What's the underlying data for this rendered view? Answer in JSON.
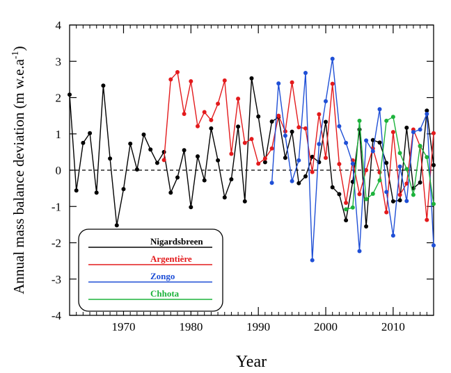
{
  "chart_data": {
    "type": "line",
    "xlabel": "Year",
    "ylabel": "Annual mass balance deviation (m w.e.a",
    "ylabel_superscript": "-1",
    "ylabel_close": ")",
    "xlim": [
      1962,
      2016
    ],
    "ylim": [
      -4,
      4
    ],
    "x_ticks": [
      1970,
      1980,
      1990,
      2000,
      2010
    ],
    "y_ticks": [
      -4,
      -3,
      -2,
      -1,
      0,
      1,
      2,
      3,
      4
    ],
    "zero_line": "dashed",
    "grid": false,
    "legend_position": "bottom-left",
    "series": [
      {
        "name": "Nigardsbreen",
        "color": "#000000",
        "x": [
          1962,
          1963,
          1964,
          1965,
          1966,
          1967,
          1968,
          1969,
          1970,
          1971,
          1972,
          1973,
          1974,
          1975,
          1976,
          1977,
          1978,
          1979,
          1980,
          1981,
          1982,
          1983,
          1984,
          1985,
          1986,
          1987,
          1988,
          1989,
          1990,
          1991,
          1992,
          1993,
          1994,
          1995,
          1996,
          1997,
          1998,
          1999,
          2000,
          2001,
          2002,
          2003,
          2004,
          2005,
          2006,
          2007,
          2008,
          2009,
          2010,
          2011,
          2012,
          2013,
          2014,
          2015,
          2016
        ],
        "values": [
          2.08,
          -0.56,
          0.75,
          1.02,
          -0.62,
          2.33,
          0.32,
          -1.52,
          -0.52,
          0.73,
          0.02,
          0.98,
          0.57,
          0.2,
          0.5,
          -0.62,
          -0.2,
          0.55,
          -1.02,
          0.38,
          -0.28,
          1.15,
          0.27,
          -0.75,
          -0.25,
          1.2,
          -0.86,
          2.53,
          1.48,
          0.22,
          1.34,
          1.46,
          0.34,
          1.06,
          -0.36,
          -0.17,
          0.37,
          0.22,
          1.33,
          -0.47,
          -0.66,
          -1.38,
          -0.32,
          1.12,
          -1.55,
          0.83,
          0.76,
          0.2,
          -0.86,
          -0.83,
          1.17,
          -0.5,
          -0.34,
          1.64,
          0.14
        ]
      },
      {
        "name": "Argentière",
        "color": "#e31a1c",
        "x": [
          1976,
          1977,
          1978,
          1979,
          1980,
          1981,
          1982,
          1983,
          1984,
          1985,
          1986,
          1987,
          1988,
          1989,
          1990,
          1991,
          1992,
          1993,
          1994,
          1995,
          1996,
          1997,
          1998,
          1999,
          2000,
          2001,
          2002,
          2003,
          2004,
          2005,
          2006,
          2007,
          2008,
          2009,
          2010,
          2011,
          2012,
          2013,
          2014,
          2015,
          2016
        ],
        "values": [
          0.28,
          2.5,
          2.7,
          1.55,
          2.45,
          1.21,
          1.6,
          1.38,
          1.83,
          2.47,
          0.45,
          1.97,
          0.75,
          0.86,
          0.18,
          0.32,
          0.6,
          1.5,
          1.07,
          2.42,
          1.18,
          1.15,
          -0.05,
          1.54,
          0.34,
          2.38,
          0.17,
          -0.9,
          0.27,
          -0.66,
          0.0,
          0.6,
          -0.06,
          -1.16,
          1.05,
          -0.68,
          -0.37,
          1.12,
          0.66,
          -1.37,
          1.02
        ]
      },
      {
        "name": "Zongo",
        "color": "#1f4fd6",
        "x": [
          1992,
          1993,
          1994,
          1995,
          1996,
          1997,
          1998,
          1999,
          2000,
          2001,
          2002,
          2003,
          2004,
          2005,
          2006,
          2007,
          2008,
          2009,
          2010,
          2011,
          2012,
          2013,
          2014,
          2015,
          2016
        ],
        "values": [
          -0.35,
          2.39,
          0.95,
          -0.3,
          0.27,
          2.68,
          -2.48,
          0.72,
          1.9,
          3.07,
          1.21,
          0.75,
          0.18,
          -2.23,
          0.82,
          0.52,
          1.68,
          -0.6,
          -1.8,
          0.1,
          -0.85,
          1.05,
          1.12,
          1.55,
          -2.07
        ]
      },
      {
        "name": "Chhota",
        "color": "#1db33c",
        "x": [
          2003,
          2004,
          2005,
          2006,
          2007,
          2008,
          2009,
          2010,
          2011,
          2012,
          2013,
          2014,
          2015,
          2016
        ],
        "values": [
          -1.08,
          -1.03,
          1.36,
          -0.8,
          -0.65,
          -0.28,
          1.36,
          1.47,
          0.47,
          0.03,
          -0.68,
          0.67,
          0.36,
          -0.93
        ]
      }
    ]
  }
}
